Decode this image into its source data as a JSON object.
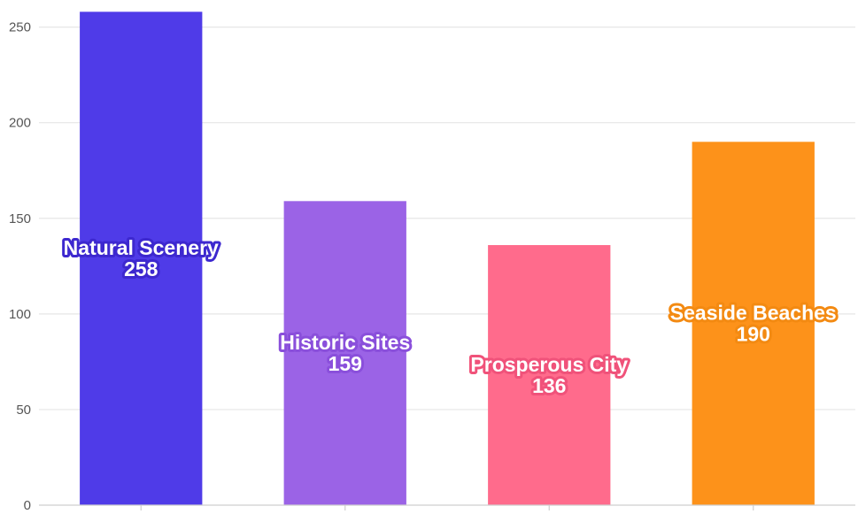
{
  "chart_data": {
    "type": "bar",
    "categories": [
      "Natural Scenery",
      "Historic Sites",
      "Prosperous City",
      "Seaside Beaches"
    ],
    "values": [
      258,
      159,
      136,
      190
    ],
    "colors": [
      "#4f3be8",
      "#9b63e6",
      "#ff6b8c",
      "#fd921a"
    ],
    "label_outline_colors": [
      "#3d28cf",
      "#8a4fdb",
      "#f0527a",
      "#f38a12"
    ],
    "ylim": [
      0,
      260
    ],
    "yticks": [
      0,
      50,
      100,
      150,
      200,
      250
    ],
    "grid": true,
    "title": "",
    "xlabel": "",
    "ylabel": ""
  }
}
